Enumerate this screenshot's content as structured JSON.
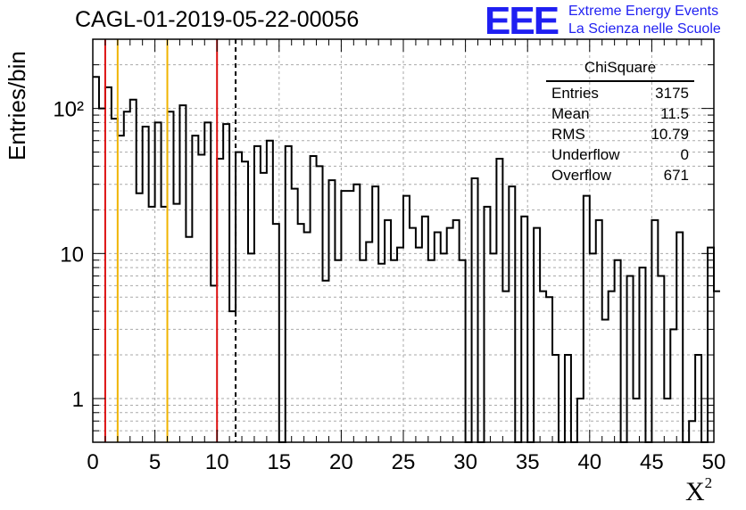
{
  "header": {
    "title": "CAGL-01-2019-05-22-00056",
    "logo_mark": "EEE",
    "logo_line1": "Extreme Energy Events",
    "logo_line2": "La Scienza nelle Scuole"
  },
  "stats_box": {
    "title": "ChiSquare",
    "rows": [
      {
        "label": "Entries",
        "value": "3175"
      },
      {
        "label": "Mean",
        "value": "11.5"
      },
      {
        "label": "RMS",
        "value": "10.79"
      },
      {
        "label": "Underflow",
        "value": "0"
      },
      {
        "label": "Overflow",
        "value": "671"
      }
    ]
  },
  "colors": {
    "red_line": "#dd1111",
    "orange_line": "#f0b400",
    "histogram": "#000000",
    "grid": "#aaaaaa"
  },
  "chart_data": {
    "type": "histogram",
    "title": "CAGL-01-2019-05-22-00056",
    "xlabel": "X",
    "xlabel_superscript": "2",
    "ylabel": "Entries/bin",
    "y_scale": "log",
    "xlim": [
      0,
      50
    ],
    "ylim": [
      0.5,
      300
    ],
    "grid": true,
    "bin_width": 0.5,
    "x_ticks": [
      "0",
      "5",
      "10",
      "15",
      "20",
      "25",
      "30",
      "35",
      "40",
      "45",
      "50"
    ],
    "x_tick_values": [
      0,
      5,
      10,
      15,
      20,
      25,
      30,
      35,
      40,
      45,
      50
    ],
    "y_ticks": [
      "1",
      "10",
      "10²"
    ],
    "y_tick_values": [
      1,
      10,
      100
    ],
    "values": [
      165,
      100,
      140,
      85,
      65,
      95,
      115,
      26,
      75,
      21,
      80,
      21,
      95,
      22,
      105,
      13,
      65,
      48,
      80,
      6,
      45,
      78,
      4,
      50,
      43,
      10,
      55,
      36,
      60,
      16,
      0,
      55,
      28,
      16,
      14,
      47,
      40,
      6.5,
      32,
      9,
      27,
      27,
      30,
      9,
      12,
      29,
      8.5,
      17,
      9,
      11,
      25,
      15,
      11,
      18,
      9,
      14,
      10,
      15,
      17,
      9,
      0,
      33,
      0,
      21,
      10,
      45,
      5.5,
      29,
      0,
      18,
      0,
      15,
      5.5,
      5,
      2,
      0,
      2,
      0,
      1,
      25,
      10,
      17,
      3.5,
      5.5,
      9,
      0,
      7,
      1,
      8,
      0,
      17,
      7,
      1,
      3,
      14,
      0,
      0.7,
      2,
      0,
      11,
      5.5
    ],
    "vertical_lines": [
      {
        "x": 1,
        "style": "solid",
        "color": "red"
      },
      {
        "x": 2,
        "style": "solid",
        "color": "orange"
      },
      {
        "x": 6,
        "style": "solid",
        "color": "orange"
      },
      {
        "x": 10,
        "style": "solid",
        "color": "red"
      },
      {
        "x": 11.5,
        "style": "dashed",
        "color": "black"
      }
    ]
  }
}
